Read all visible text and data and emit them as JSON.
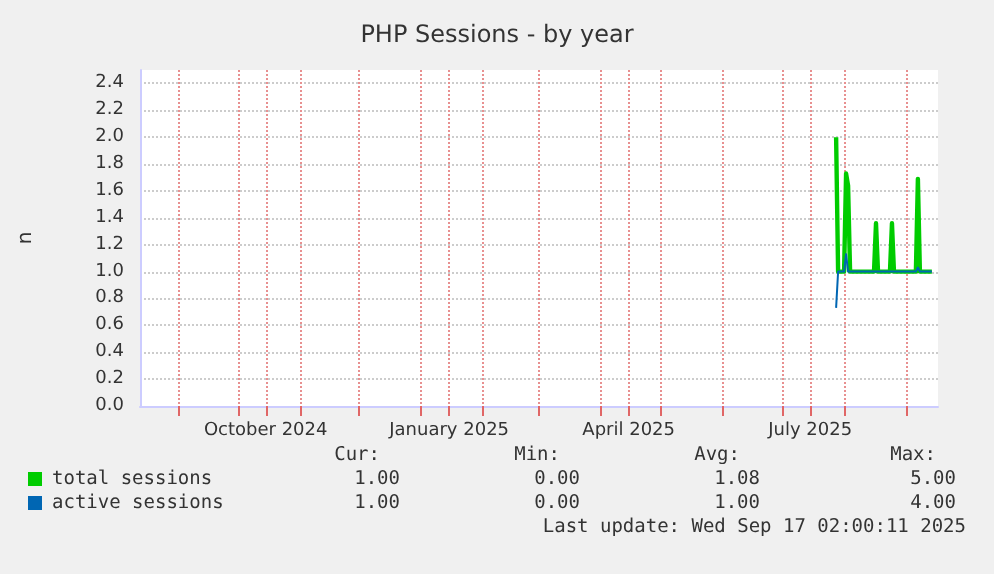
{
  "chart_data": {
    "type": "line",
    "title": "PHP Sessions - by year",
    "ylabel": "n",
    "xlim": [
      "2024-08-13",
      "2025-09-17T02:00"
    ],
    "xticks": [
      {
        "value": "2024-09-01",
        "label": null
      },
      {
        "value": "2024-10-01",
        "label": null
      },
      {
        "value": "2024-10-15",
        "label": "October 2024"
      },
      {
        "value": "2024-11-01",
        "label": null
      },
      {
        "value": "2024-12-01",
        "label": null
      },
      {
        "value": "2025-01-01",
        "label": null
      },
      {
        "value": "2025-01-15",
        "label": "January 2025"
      },
      {
        "value": "2025-02-01",
        "label": null
      },
      {
        "value": "2025-03-01",
        "label": null
      },
      {
        "value": "2025-04-01",
        "label": null
      },
      {
        "value": "2025-04-15",
        "label": "April 2025"
      },
      {
        "value": "2025-05-01",
        "label": null
      },
      {
        "value": "2025-06-01",
        "label": null
      },
      {
        "value": "2025-07-01",
        "label": null
      },
      {
        "value": "2025-07-15",
        "label": "July 2025"
      },
      {
        "value": "2025-08-01",
        "label": null
      },
      {
        "value": "2025-09-01",
        "label": null
      }
    ],
    "ylim": [
      0,
      2.5
    ],
    "yticks": [
      {
        "value": 0,
        "label": "0.0"
      },
      {
        "value": 0.2,
        "label": "0.2"
      },
      {
        "value": 0.4,
        "label": "0.4"
      },
      {
        "value": 0.6,
        "label": "0.6"
      },
      {
        "value": 0.8,
        "label": "0.8"
      },
      {
        "value": 1.0,
        "label": "1.0"
      },
      {
        "value": 1.2,
        "label": "1.2"
      },
      {
        "value": 1.4,
        "label": "1.4"
      },
      {
        "value": 1.6,
        "label": "1.6"
      },
      {
        "value": 1.8,
        "label": "1.8"
      },
      {
        "value": 2.0,
        "label": "2.0"
      },
      {
        "value": 2.2,
        "label": "2.2"
      },
      {
        "value": 2.4,
        "label": "2.4"
      }
    ],
    "grid": true,
    "legend": "bottom",
    "marker": "none",
    "line_style": "solid",
    "series": [
      {
        "name": "total sessions",
        "color": "#00cc00",
        "x": [
          "2025-07-28",
          "2025-07-29",
          "2025-08-01",
          "2025-08-02",
          "2025-08-03",
          "2025-08-04",
          "2025-08-16",
          "2025-08-17",
          "2025-08-18",
          "2025-08-24",
          "2025-08-25",
          "2025-08-26",
          "2025-09-06",
          "2025-09-07",
          "2025-09-08",
          "2025-09-14"
        ],
        "values": [
          2.0,
          1.0,
          1.0,
          1.73,
          1.64,
          1.0,
          1.0,
          1.36,
          1.0,
          1.0,
          1.36,
          1.0,
          1.0,
          1.69,
          1.0,
          1.0
        ]
      },
      {
        "name": "active sessions",
        "color": "#0066b3",
        "x": [
          "2025-07-28",
          "2025-07-29",
          "2025-08-01",
          "2025-08-02",
          "2025-08-03",
          "2025-09-06",
          "2025-09-07",
          "2025-09-08",
          "2025-09-14"
        ],
        "values": [
          0.73,
          1.0,
          1.0,
          1.13,
          1.0,
          1.0,
          1.03,
          1.0,
          1.0
        ]
      }
    ],
    "annotations": [
      "Cur:",
      "Min:",
      "Avg:",
      "Max:",
      "1.00",
      "0.00",
      "1.08",
      "5.00",
      "1.00",
      "0.00",
      "1.00",
      "4.00",
      "Last update: Wed Sep 17 02:00:11 2025"
    ]
  }
}
